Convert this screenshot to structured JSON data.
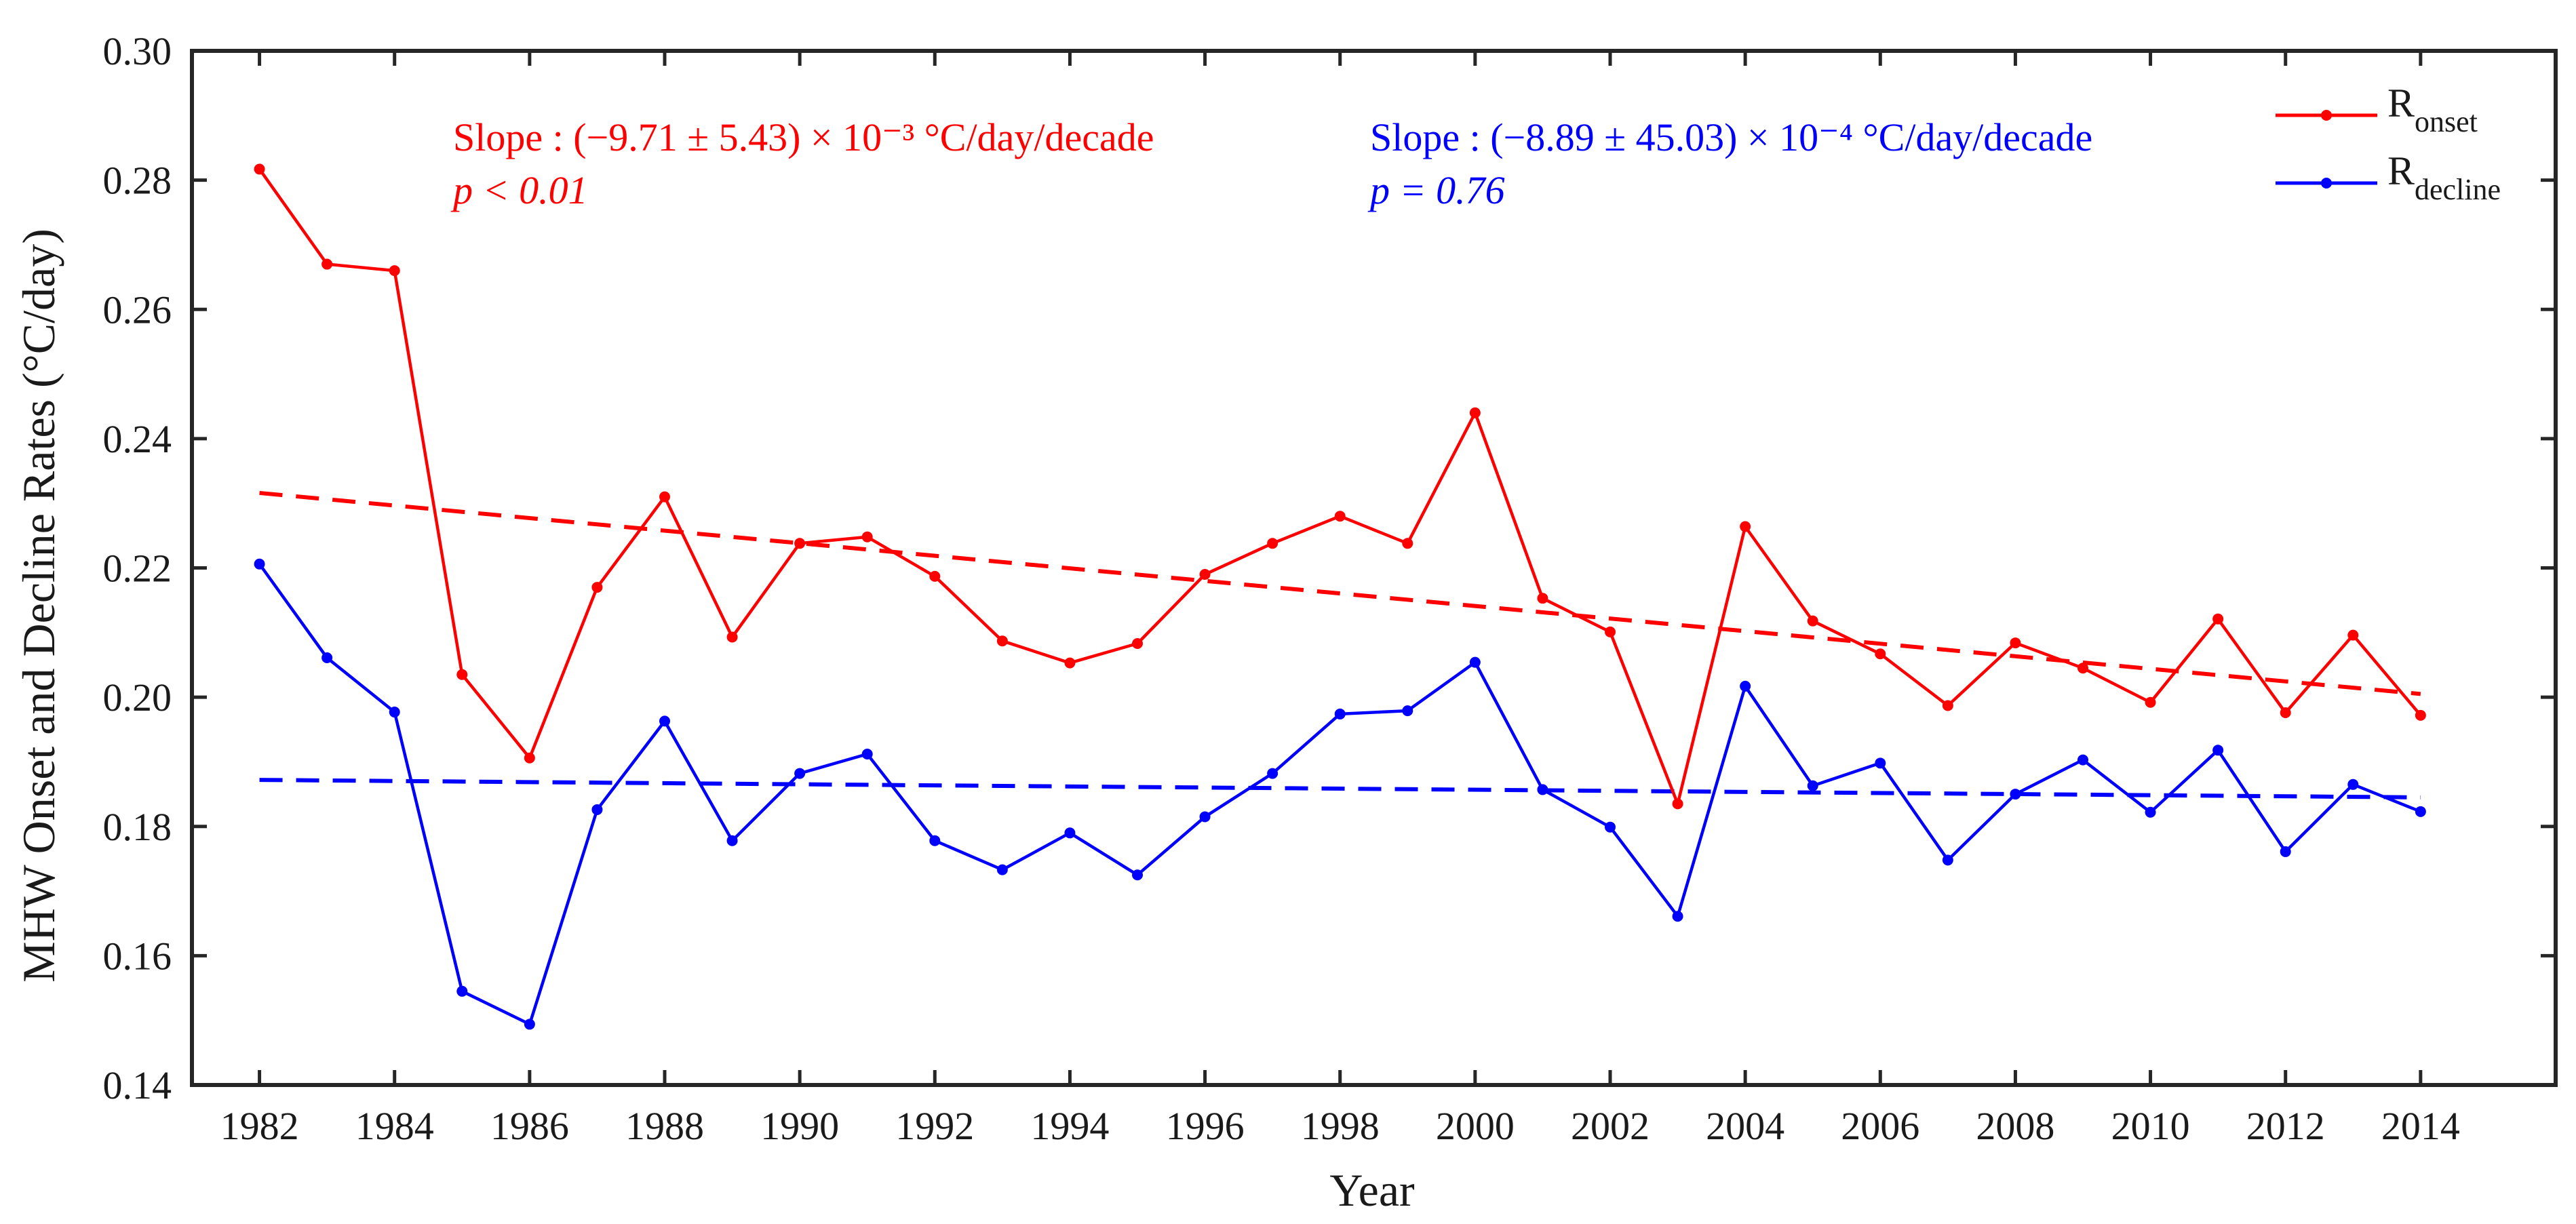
{
  "chart_data": {
    "type": "line",
    "xlabel": "Year",
    "ylabel": "MHW Onset and Decline Rates (°C/day)",
    "xlim": [
      1981,
      2016
    ],
    "ylim": [
      0.14,
      0.3
    ],
    "xticks": [
      1982,
      1984,
      1986,
      1988,
      1990,
      1992,
      1994,
      1996,
      1998,
      2000,
      2002,
      2004,
      2006,
      2008,
      2010,
      2012,
      2014
    ],
    "yticks": [
      "0.14",
      "0.16",
      "0.18",
      "0.20",
      "0.22",
      "0.24",
      "0.26",
      "0.28",
      "0.30"
    ],
    "x": [
      1982,
      1983,
      1984,
      1985,
      1986,
      1987,
      1988,
      1989,
      1990,
      1991,
      1992,
      1993,
      1994,
      1995,
      1996,
      1997,
      1998,
      1999,
      2000,
      2001,
      2002,
      2003,
      2004,
      2005,
      2006,
      2007,
      2008,
      2009,
      2010,
      2011,
      2012,
      2013,
      2014
    ],
    "series": [
      {
        "name": "R_onset",
        "legend_main": "R",
        "legend_sub": "onset",
        "color": "#ff0000",
        "values": [
          0.2817,
          0.267,
          0.266,
          0.2035,
          0.1906,
          0.217,
          0.231,
          0.2093,
          0.2238,
          0.2248,
          0.2187,
          0.2087,
          0.2053,
          0.2083,
          0.219,
          0.2238,
          0.228,
          0.2238,
          0.244,
          0.2153,
          0.2101,
          0.1835,
          0.2264,
          0.2118,
          0.2067,
          0.1987,
          0.2084,
          0.2045,
          0.1992,
          0.2121,
          0.1976,
          0.2096,
          0.1972
        ],
        "trend": {
          "start": [
            1982,
            0.2316
          ],
          "end": [
            2014,
            0.2005
          ]
        },
        "slope_text": "Slope : (−9.71 ± 5.43) × 10⁻³ °C/day/decade",
        "p_text": "p < 0.01"
      },
      {
        "name": "R_decline",
        "legend_main": "R",
        "legend_sub": "decline",
        "color": "#0000ff",
        "values": [
          0.2206,
          0.2061,
          0.1977,
          0.1545,
          0.1494,
          0.1826,
          0.1963,
          0.1778,
          0.1882,
          0.1912,
          0.1778,
          0.1733,
          0.179,
          0.1725,
          0.1815,
          0.1882,
          0.1974,
          0.1979,
          0.2054,
          0.1857,
          0.1799,
          0.1661,
          0.2017,
          0.1863,
          0.1898,
          0.1748,
          0.185,
          0.1903,
          0.1822,
          0.1918,
          0.1761,
          0.1865,
          0.1823
        ],
        "trend": {
          "start": [
            1982,
            0.1872
          ],
          "end": [
            2014,
            0.1845
          ]
        },
        "slope_text": "Slope : (−8.89 ± 45.03) × 10⁻⁴ °C/day/decade",
        "p_text": "p = 0.76"
      }
    ]
  }
}
